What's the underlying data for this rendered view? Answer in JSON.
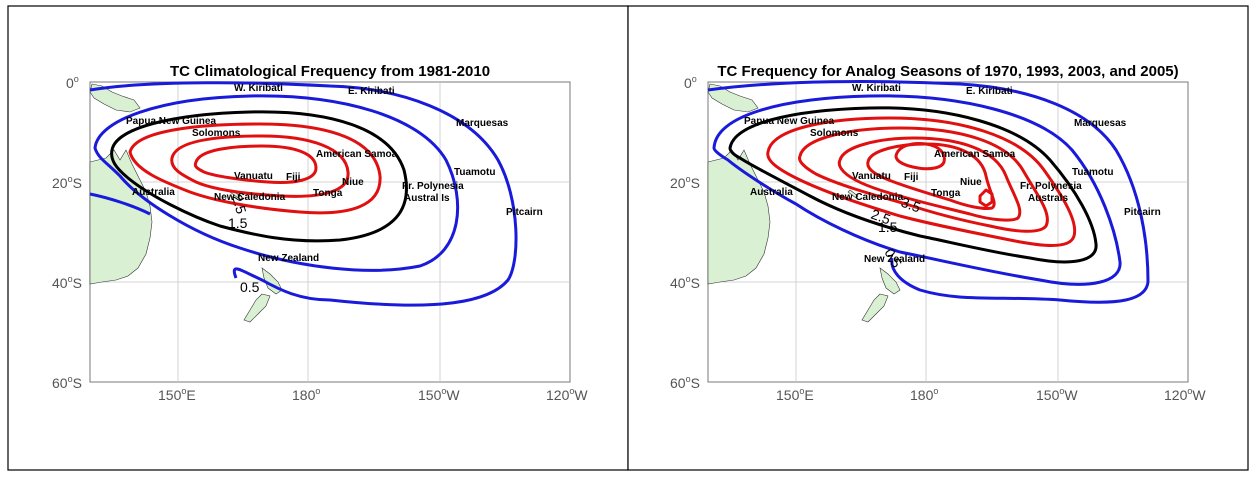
{
  "colors": {
    "contour_blue": "#1a1adb",
    "contour_black": "#000000",
    "contour_red": "#e01010",
    "land": "#d9f0d3",
    "grid": "#c8c8c8",
    "tick_text": "#555555"
  },
  "maps": [
    {
      "id": "left",
      "title": "TC Climatological Frequency from 1981-2010",
      "x_ticks": [
        {
          "base": "150",
          "sup": "o",
          "suffix": "E"
        },
        {
          "base": "180",
          "sup": "o",
          "suffix": ""
        },
        {
          "base": "150",
          "sup": "o",
          "suffix": "W"
        },
        {
          "base": "120",
          "sup": "o",
          "suffix": "W"
        }
      ],
      "y_ticks": [
        {
          "base": "0",
          "sup": "o",
          "suffix": ""
        },
        {
          "base": "20",
          "sup": "o",
          "suffix": "S"
        },
        {
          "base": "40",
          "sup": "o",
          "suffix": "S"
        },
        {
          "base": "60",
          "sup": "o",
          "suffix": "S"
        }
      ],
      "places": [
        "W. Kiribati",
        "E. Kiribati",
        "Papua New Guinea",
        "Solomons",
        "Marquesas",
        "American Samoa",
        "Vanuatu",
        "Fiji",
        "Niue",
        "Tuamotu",
        "Australia",
        "Tonga",
        "Fr. Polynesia",
        "New Caledonia",
        "Austral Is",
        "Pitcairn",
        "New Zealand"
      ],
      "contour_labels": [
        "2.5",
        "1.5",
        "0.5"
      ]
    },
    {
      "id": "right",
      "title": "TC Frequency for Analog Seasons of 1970, 1993, 2003, and 2005)",
      "x_ticks": [
        {
          "base": "150",
          "sup": "o",
          "suffix": "E"
        },
        {
          "base": "180",
          "sup": "o",
          "suffix": ""
        },
        {
          "base": "150",
          "sup": "o",
          "suffix": "W"
        },
        {
          "base": "120",
          "sup": "o",
          "suffix": "W"
        }
      ],
      "y_ticks": [
        {
          "base": "0",
          "sup": "o",
          "suffix": ""
        },
        {
          "base": "20",
          "sup": "o",
          "suffix": "S"
        },
        {
          "base": "40",
          "sup": "o",
          "suffix": "S"
        },
        {
          "base": "60",
          "sup": "o",
          "suffix": "S"
        }
      ],
      "places": [
        "W. Kiribati",
        "E. Kiribati",
        "Papua New Guinea",
        "Solomons",
        "Marquesas",
        "American Samoa",
        "Vanuatu",
        "Fiji",
        "Niue",
        "Tuamotu",
        "Australia",
        "Tonga",
        "Fr. Polynesia",
        "New Caledonia",
        "Australs",
        "Pitcairn",
        "New Zealand"
      ],
      "contour_labels": [
        "3.5",
        "2.5",
        "1.5",
        "0.5"
      ]
    }
  ]
}
